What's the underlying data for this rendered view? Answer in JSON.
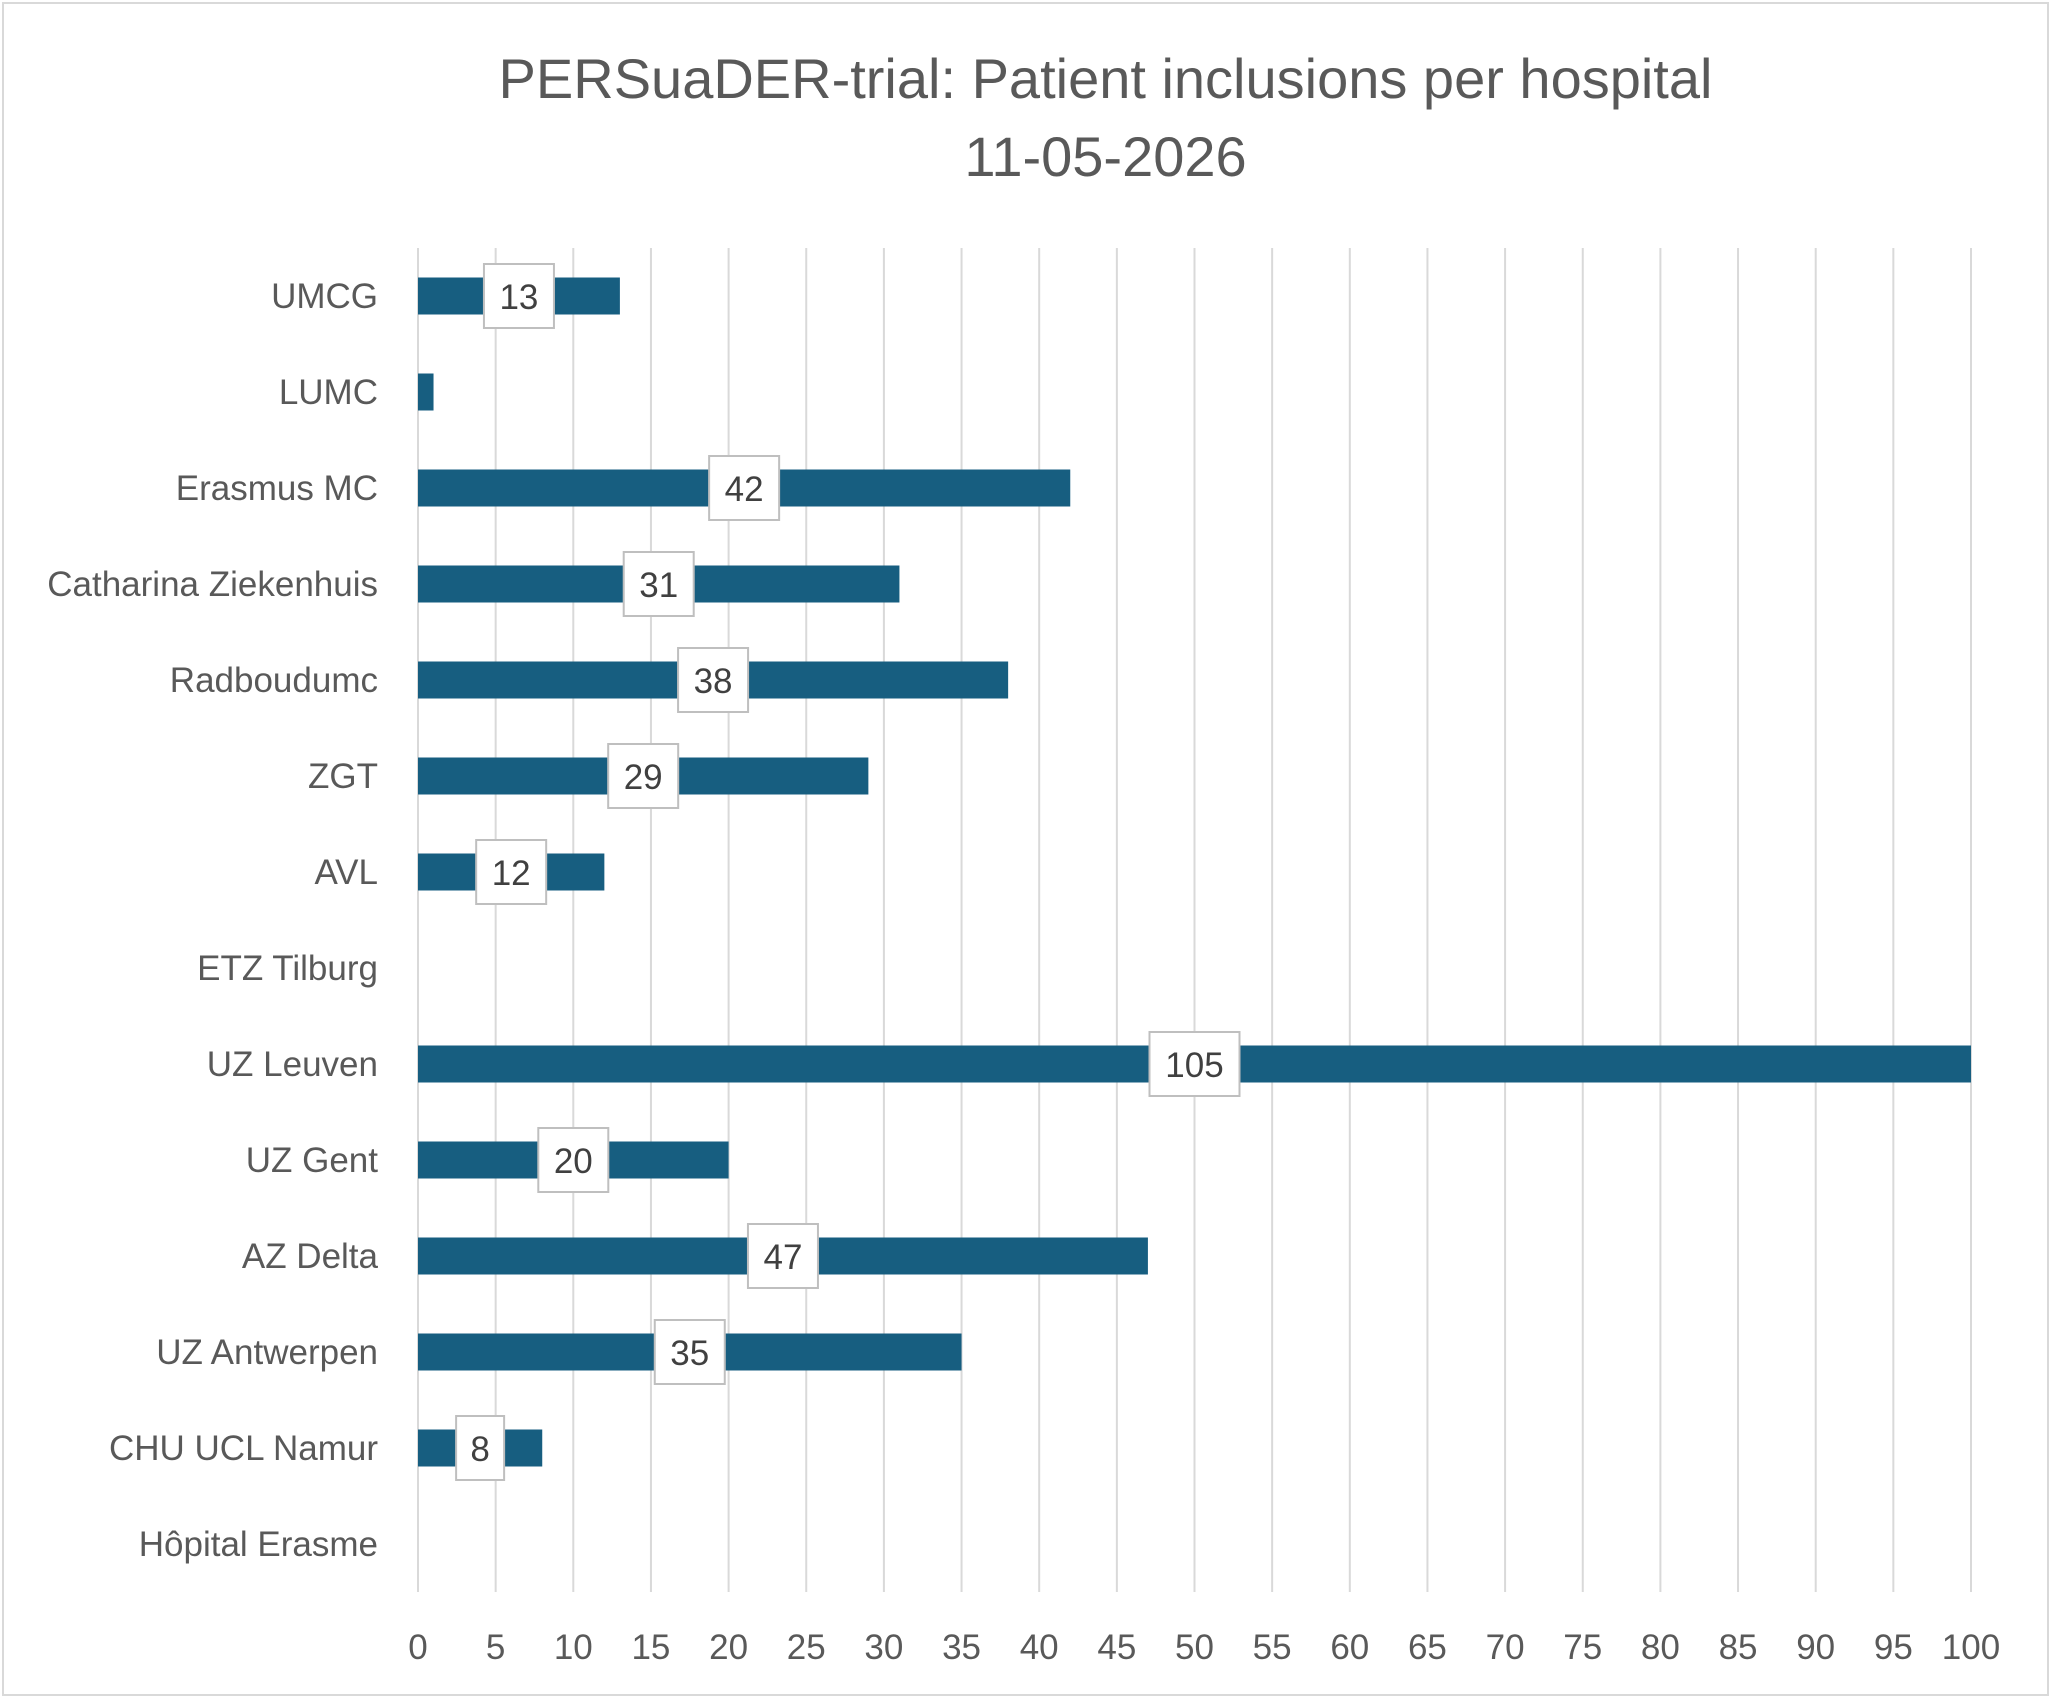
{
  "chart_data": {
    "type": "bar",
    "orientation": "horizontal",
    "title": "PERSuaDER-trial: Patient inclusions per hospital",
    "subtitle": "11-05-2026",
    "xlabel": "",
    "ylabel": "",
    "xlim": [
      0,
      100
    ],
    "x_ticks": [
      "0",
      "5",
      "10",
      "15",
      "20",
      "25",
      "30",
      "35",
      "40",
      "45",
      "50",
      "55",
      "60",
      "65",
      "70",
      "75",
      "80",
      "85",
      "90",
      "95",
      "100"
    ],
    "grid": "vertical",
    "legend": "none",
    "bar_color": "#175e80",
    "categories": [
      "UMCG",
      "LUMC",
      "Erasmus MC",
      "Catharina Ziekenhuis",
      "Radboudumc",
      "ZGT",
      "AVL",
      "ETZ Tilburg",
      "UZ Leuven",
      "UZ Gent",
      "AZ Delta",
      "UZ Antwerpen",
      "CHU UCL Namur",
      "Hôpital Erasme"
    ],
    "values": [
      13,
      1,
      42,
      31,
      38,
      29,
      12,
      0,
      105,
      20,
      47,
      35,
      8,
      0
    ],
    "data_labels": [
      "13",
      "",
      "42",
      "31",
      "38",
      "29",
      "12",
      "",
      "105",
      "20",
      "47",
      "35",
      "8",
      ""
    ]
  }
}
